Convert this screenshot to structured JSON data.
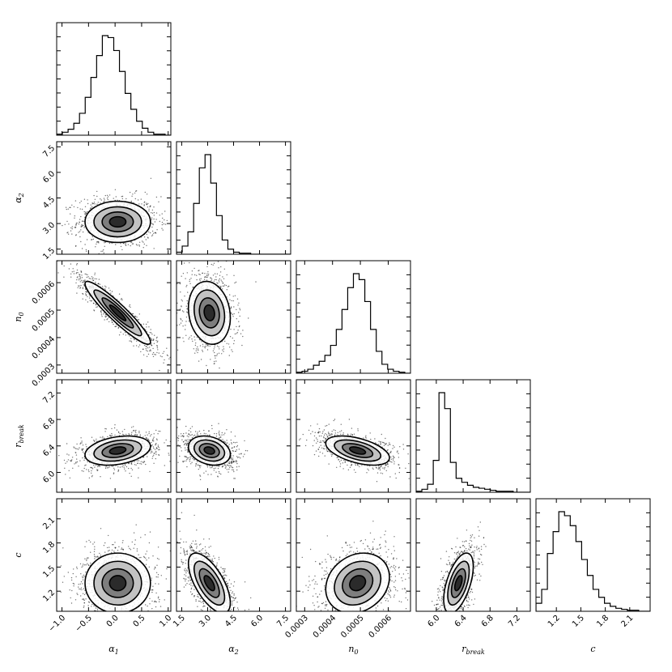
{
  "chart_data": {
    "type": "corner",
    "parameters": [
      {
        "key": "alpha1",
        "label_main": "α",
        "label_sub": "1",
        "range": [
          -1.1,
          1.05
        ],
        "ticks": [
          -1.0,
          -0.5,
          0.0,
          0.5,
          1.0
        ],
        "tick_labels": [
          "−1.0",
          "−0.5",
          "0.0",
          "0.5",
          "1.0"
        ],
        "mean": 0.05,
        "sd": 0.28
      },
      {
        "key": "alpha2",
        "label_main": "α",
        "label_sub": "2",
        "range": [
          1.2,
          7.8
        ],
        "ticks": [
          1.5,
          3.0,
          4.5,
          6.0,
          7.5
        ],
        "tick_labels": [
          "1.5",
          "3.0",
          "4.5",
          "6.0",
          "7.5"
        ],
        "mean": 3.1,
        "sd": 0.55
      },
      {
        "key": "n0",
        "label_main": "n",
        "label_sub": "0",
        "range": [
          0.00027,
          0.00068
        ],
        "ticks": [
          0.0003,
          0.0004,
          0.0005,
          0.0006
        ],
        "tick_labels": [
          "0.0003",
          "0.0004",
          "0.0005",
          "0.0006"
        ],
        "mean": 0.00049,
        "sd": 5.2e-05
      },
      {
        "key": "rbreak",
        "label_main": "r",
        "label_sub": "break",
        "range": [
          5.7,
          7.4
        ],
        "ticks": [
          6.0,
          6.4,
          6.8,
          7.2
        ],
        "tick_labels": [
          "6.0",
          "6.4",
          "6.8",
          "7.2"
        ],
        "mean": 6.33,
        "sd": 0.1
      },
      {
        "key": "c",
        "label_main": "c",
        "label_sub": "",
        "range": [
          0.95,
          2.35
        ],
        "ticks": [
          1.2,
          1.5,
          1.8,
          2.1
        ],
        "tick_labels": [
          "1.2",
          "1.5",
          "1.8",
          "2.1"
        ],
        "mean": 1.3,
        "sd": 0.17
      }
    ],
    "histograms": {
      "alpha1": [
        1,
        3,
        6,
        12,
        22,
        38,
        58,
        80,
        100,
        98,
        85,
        64,
        42,
        26,
        14,
        7,
        3,
        1,
        1,
        0
      ],
      "alpha2": [
        2,
        8,
        22,
        50,
        85,
        98,
        70,
        38,
        14,
        5,
        2,
        1,
        1,
        0,
        0,
        0,
        0,
        0,
        0,
        0
      ],
      "n0": [
        1,
        2,
        4,
        8,
        12,
        18,
        28,
        44,
        64,
        86,
        100,
        94,
        72,
        44,
        22,
        9,
        4,
        2,
        1,
        0
      ],
      "rbreak": [
        1,
        3,
        8,
        32,
        100,
        84,
        30,
        14,
        10,
        7,
        5,
        4,
        3,
        2,
        1,
        1,
        1,
        0,
        0,
        0
      ],
      "c": [
        8,
        22,
        58,
        80,
        100,
        96,
        86,
        70,
        52,
        36,
        22,
        14,
        8,
        5,
        3,
        2,
        1,
        1,
        0,
        0
      ]
    },
    "correlations": {
      "alpha2|alpha1": 0.0,
      "n0|alpha1": -0.93,
      "n0|alpha2": -0.15,
      "rbreak|alpha1": 0.3,
      "rbreak|alpha2": -0.25,
      "rbreak|n0": -0.5,
      "c|alpha1": 0.0,
      "c|alpha2": -0.65,
      "c|n0": 0.2,
      "c|rbreak": 0.55
    }
  }
}
